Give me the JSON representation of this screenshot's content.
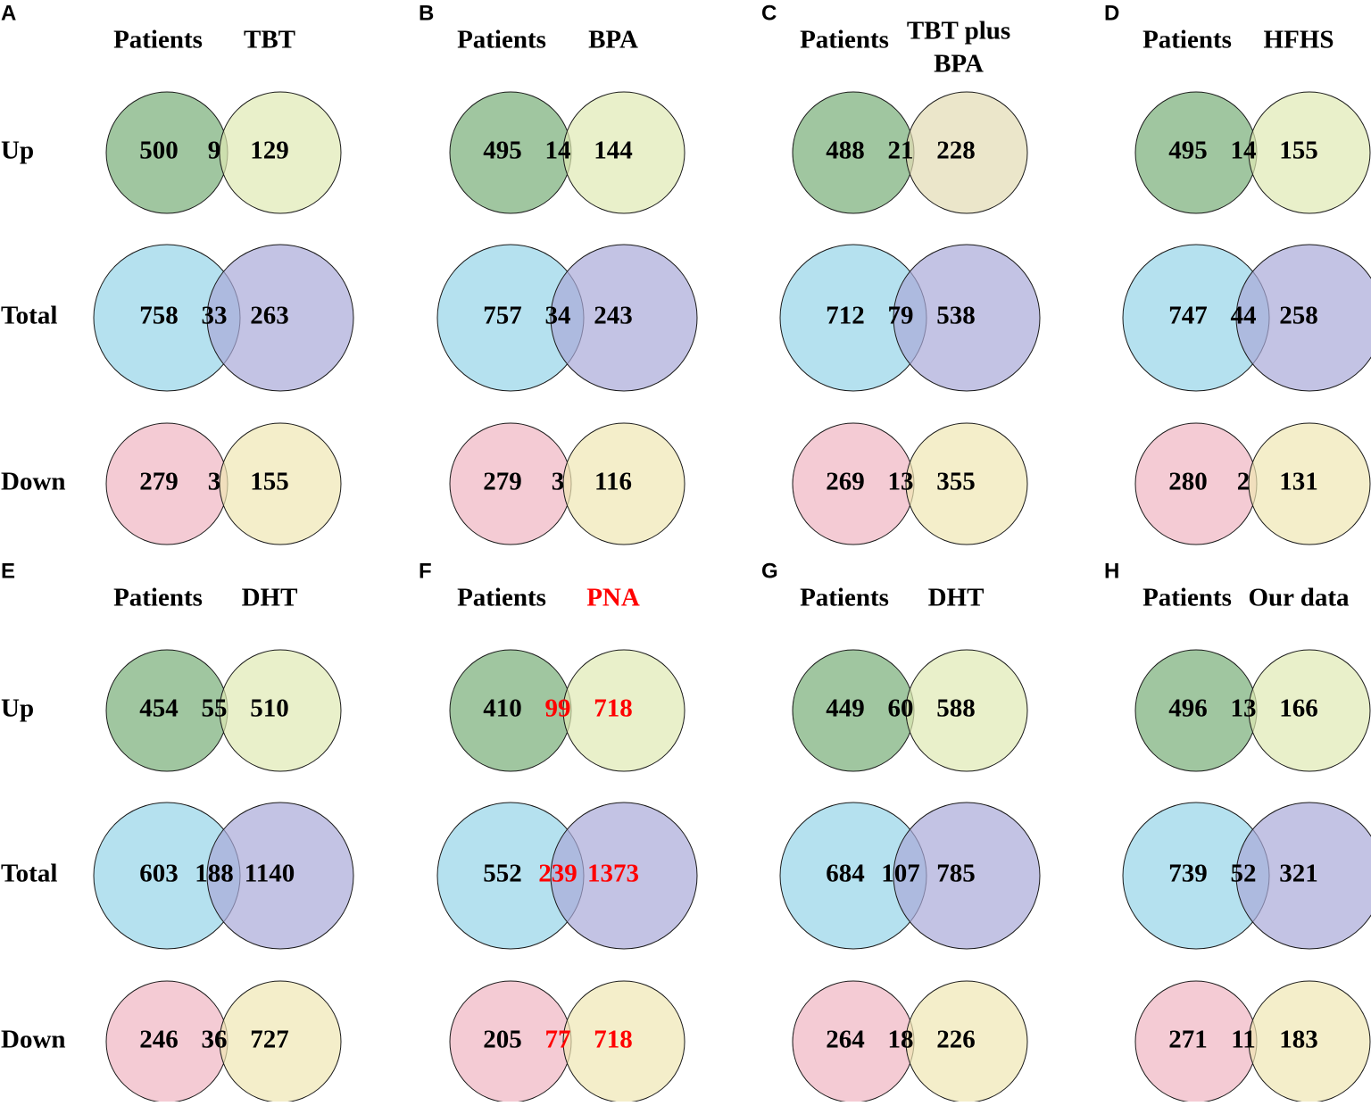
{
  "row_labels": [
    "Up",
    "Total",
    "Down"
  ],
  "colors": {
    "up_left": "#8fbc8f",
    "up_right": "#dfeab3",
    "up_right_alt": "#e3dcb3",
    "total_left": "#a8dcec",
    "total_right": "#aaaad8",
    "down_left": "#f2c2cc",
    "down_right": "#efe7b3",
    "highlight": "#ff0000",
    "text": "#000000",
    "stroke": "#1a1a1a"
  },
  "panels": [
    {
      "letter": "A",
      "left_title": "Patients",
      "right_title": "TBT",
      "up": {
        "left": "500",
        "overlap": "9",
        "right": "129"
      },
      "total": {
        "left": "758",
        "overlap": "33",
        "right": "263"
      },
      "down": {
        "left": "279",
        "overlap": "3",
        "right": "155"
      }
    },
    {
      "letter": "B",
      "left_title": "Patients",
      "right_title": "BPA",
      "up": {
        "left": "495",
        "overlap": "14",
        "right": "144"
      },
      "total": {
        "left": "757",
        "overlap": "34",
        "right": "243"
      },
      "down": {
        "left": "279",
        "overlap": "3",
        "right": "116"
      }
    },
    {
      "letter": "C",
      "left_title": "Patients",
      "right_title": "TBT plus BPA",
      "right_title_lines": [
        "TBT plus",
        "BPA"
      ],
      "up_right_alt": true,
      "up": {
        "left": "488",
        "overlap": "21",
        "right": "228"
      },
      "total": {
        "left": "712",
        "overlap": "79",
        "right": "538"
      },
      "down": {
        "left": "269",
        "overlap": "13",
        "right": "355"
      }
    },
    {
      "letter": "D",
      "left_title": "Patients",
      "right_title": "HFHS",
      "up": {
        "left": "495",
        "overlap": "14",
        "right": "155"
      },
      "total": {
        "left": "747",
        "overlap": "44",
        "right": "258"
      },
      "down": {
        "left": "280",
        "overlap": "2",
        "right": "131"
      }
    },
    {
      "letter": "E",
      "left_title": "Patients",
      "right_title": "DHT",
      "up": {
        "left": "454",
        "overlap": "55",
        "right": "510"
      },
      "total": {
        "left": "603",
        "overlap": "188",
        "right": "1140"
      },
      "down": {
        "left": "246",
        "overlap": "36",
        "right": "727"
      }
    },
    {
      "letter": "F",
      "left_title": "Patients",
      "right_title": "PNA",
      "highlight": true,
      "up": {
        "left": "410",
        "overlap": "99",
        "right": "718"
      },
      "total": {
        "left": "552",
        "overlap": "239",
        "right": "1373"
      },
      "down": {
        "left": "205",
        "overlap": "77",
        "right": "718"
      }
    },
    {
      "letter": "G",
      "left_title": "Patients",
      "right_title": "DHT",
      "up": {
        "left": "449",
        "overlap": "60",
        "right": "588"
      },
      "total": {
        "left": "684",
        "overlap": "107",
        "right": "785"
      },
      "down": {
        "left": "264",
        "overlap": "18",
        "right": "226"
      }
    },
    {
      "letter": "H",
      "left_title": "Patients",
      "right_title": "Our data",
      "up": {
        "left": "496",
        "overlap": "13",
        "right": "166"
      },
      "total": {
        "left": "739",
        "overlap": "52",
        "right": "321"
      },
      "down": {
        "left": "271",
        "overlap": "11",
        "right": "183"
      }
    }
  ]
}
